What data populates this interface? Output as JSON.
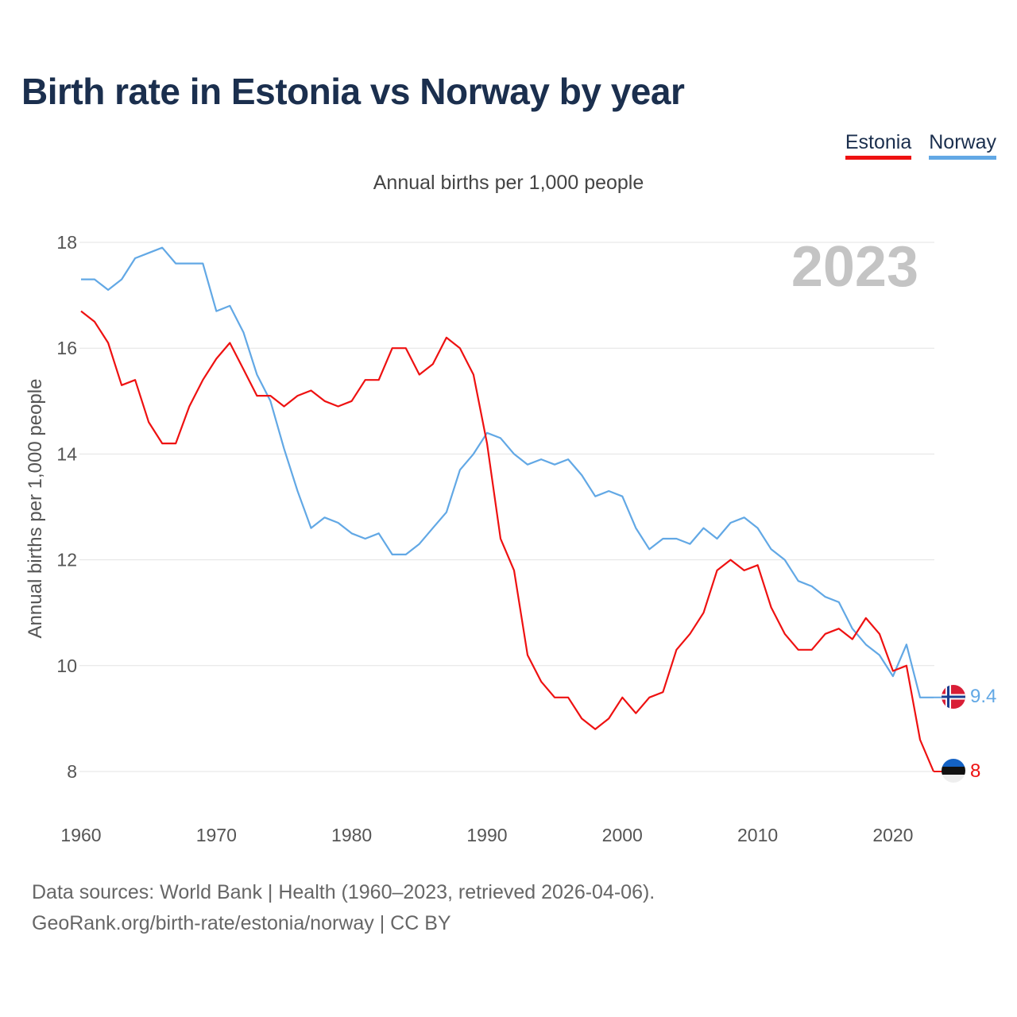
{
  "title": "Birth rate in Estonia vs Norway by year",
  "subtitle": "Annual births per 1,000 people",
  "year_badge": "2023",
  "footer": {
    "line1": "Data sources: World Bank | Health (1960–2023, retrieved 2026-04-06).",
    "line2": "GeoRank.org/birth-rate/estonia/norway | CC BY"
  },
  "colors": {
    "estonia": "#ee1111",
    "norway": "#62a8e5",
    "badge": "#c4c4c4"
  },
  "chart_data": {
    "type": "line",
    "title": "Birth rate in Estonia vs Norway by year",
    "subtitle": "Annual births per 1,000 people",
    "xlabel": "",
    "ylabel": "Annual births per 1,000 people",
    "xlim": [
      1960,
      2023
    ],
    "ylim": [
      7.5,
      18.4
    ],
    "x_ticks": [
      1960,
      1970,
      1980,
      1990,
      2000,
      2010,
      2020
    ],
    "y_ticks": [
      8,
      10,
      12,
      14,
      16,
      18
    ],
    "grid": true,
    "legend": "top-right",
    "x": [
      1960,
      1961,
      1962,
      1963,
      1964,
      1965,
      1966,
      1967,
      1968,
      1969,
      1970,
      1971,
      1972,
      1973,
      1974,
      1975,
      1976,
      1977,
      1978,
      1979,
      1980,
      1981,
      1982,
      1983,
      1984,
      1985,
      1986,
      1987,
      1988,
      1989,
      1990,
      1991,
      1992,
      1993,
      1994,
      1995,
      1996,
      1997,
      1998,
      1999,
      2000,
      2001,
      2002,
      2003,
      2004,
      2005,
      2006,
      2007,
      2008,
      2009,
      2010,
      2011,
      2012,
      2013,
      2014,
      2015,
      2016,
      2017,
      2018,
      2019,
      2020,
      2021,
      2022,
      2023
    ],
    "series": [
      {
        "name": "Estonia",
        "color": "#ee1111",
        "last_label": "8",
        "values": [
          16.7,
          16.5,
          16.1,
          15.3,
          15.4,
          14.6,
          14.2,
          14.2,
          14.9,
          15.4,
          15.8,
          16.1,
          15.6,
          15.1,
          15.1,
          14.9,
          15.1,
          15.2,
          15.0,
          14.9,
          15.0,
          15.4,
          15.4,
          16.0,
          16.0,
          15.5,
          15.7,
          16.2,
          16.0,
          15.5,
          14.2,
          12.4,
          11.8,
          10.2,
          9.7,
          9.4,
          9.4,
          9.0,
          8.8,
          9.0,
          9.4,
          9.1,
          9.4,
          9.5,
          10.3,
          10.6,
          11.0,
          11.8,
          12.0,
          11.8,
          11.9,
          11.1,
          10.6,
          10.3,
          10.3,
          10.6,
          10.7,
          10.5,
          10.9,
          10.6,
          9.9,
          10.0,
          8.6,
          8.0
        ]
      },
      {
        "name": "Norway",
        "color": "#62a8e5",
        "last_label": "9.4",
        "values": [
          17.3,
          17.3,
          17.1,
          17.3,
          17.7,
          17.8,
          17.9,
          17.6,
          17.6,
          17.6,
          16.7,
          16.8,
          16.3,
          15.5,
          15.0,
          14.1,
          13.3,
          12.6,
          12.8,
          12.7,
          12.5,
          12.4,
          12.5,
          12.1,
          12.1,
          12.3,
          12.6,
          12.9,
          13.7,
          14.0,
          14.4,
          14.3,
          14.0,
          13.8,
          13.9,
          13.8,
          13.9,
          13.6,
          13.2,
          13.3,
          13.2,
          12.6,
          12.2,
          12.4,
          12.4,
          12.3,
          12.6,
          12.4,
          12.7,
          12.8,
          12.6,
          12.2,
          12.0,
          11.6,
          11.5,
          11.3,
          11.2,
          10.7,
          10.4,
          10.2,
          9.8,
          10.4,
          9.4,
          9.4
        ]
      }
    ]
  }
}
